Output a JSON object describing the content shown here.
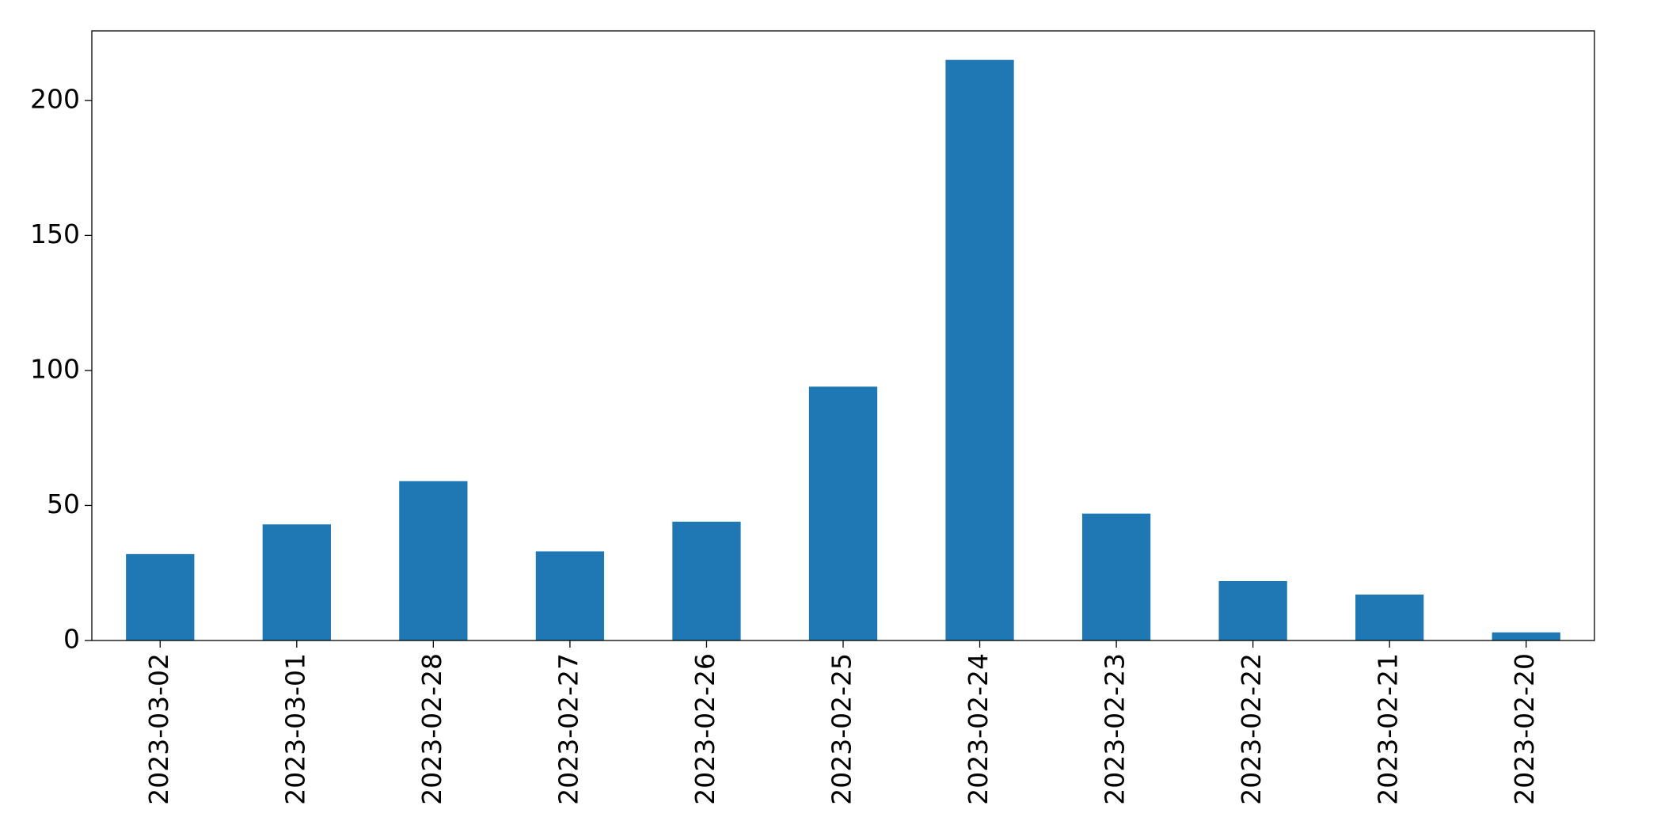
{
  "chart_data": {
    "type": "bar",
    "categories": [
      "2023-03-02",
      "2023-03-01",
      "2023-02-28",
      "2023-02-27",
      "2023-02-26",
      "2023-02-25",
      "2023-02-24",
      "2023-02-23",
      "2023-02-22",
      "2023-02-21",
      "2023-02-20"
    ],
    "values": [
      32,
      43,
      59,
      33,
      44,
      94,
      215,
      47,
      22,
      17,
      3
    ],
    "color": "#1f77b4",
    "ylim": [
      0,
      225.75
    ],
    "yticks": [
      0,
      50,
      100,
      150,
      200
    ],
    "grid": false
  }
}
